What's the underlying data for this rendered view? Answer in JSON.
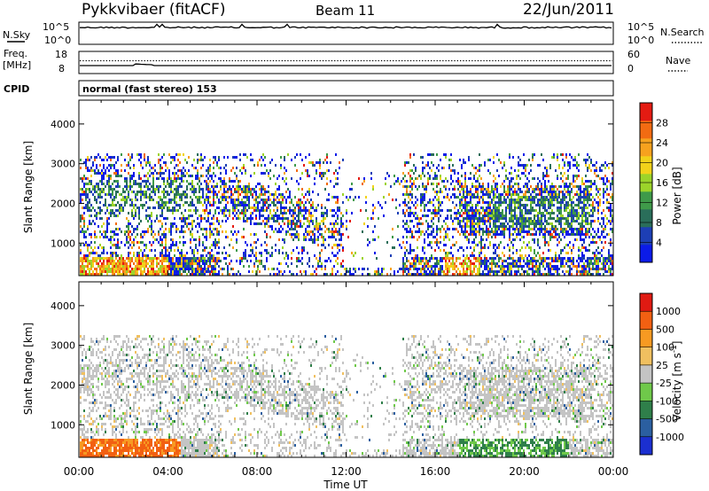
{
  "header": {
    "station": "Pykkvibaer (fitACF)",
    "beam": "Beam 11",
    "date": "22/Jun/2011"
  },
  "top_panels": {
    "nsky": {
      "label": "N.Sky",
      "ticks": [
        "10^5",
        "10^0"
      ]
    },
    "nsearch": {
      "label": "N.Search",
      "ticks": [
        "10^5",
        "10^0"
      ]
    },
    "freq": {
      "label_line1": "Freq.",
      "label_line2": "[MHz]",
      "ticks": [
        "18",
        "8"
      ]
    },
    "nave": {
      "label": "Nave",
      "ticks": [
        "60",
        "0"
      ]
    },
    "cpid": {
      "label": "CPID",
      "text": "normal (fast stereo) 153"
    }
  },
  "chart_data": [
    {
      "type": "heatmap",
      "title": "Power",
      "xlabel": "Time UT",
      "ylabel": "Slant Range [km]",
      "x_ticks": [
        "00:00",
        "04:00",
        "08:00",
        "12:00",
        "16:00",
        "20:00",
        "00:00"
      ],
      "x_range_hours": [
        0,
        24
      ],
      "y_ticks": [
        "4000",
        "3000",
        "2000",
        "1000"
      ],
      "ylim": [
        180,
        4600
      ],
      "colorbar": {
        "label": "Power [dB]",
        "ticks": [
          "28",
          "24",
          "20",
          "16",
          "12",
          "8",
          "4"
        ],
        "range": [
          0,
          32
        ],
        "colors": [
          "#0b1be8",
          "#1d3fb5",
          "#2a6e5a",
          "#3f9a4a",
          "#9cd42a",
          "#f2d21a",
          "#f7a21e",
          "#f26b12",
          "#e41b12"
        ]
      }
    },
    {
      "type": "heatmap",
      "title": "Velocity",
      "xlabel": "Time UT",
      "ylabel": "Slant Range [km]",
      "x_ticks": [
        "00:00",
        "04:00",
        "08:00",
        "12:00",
        "16:00",
        "20:00",
        "00:00"
      ],
      "x_range_hours": [
        0,
        24
      ],
      "y_ticks": [
        "4000",
        "3000",
        "2000",
        "1000"
      ],
      "ylim": [
        180,
        4600
      ],
      "colorbar": {
        "label": "Velocity [m s",
        "label_sup": "-1",
        "label_end": "]",
        "ticks": [
          "1000",
          "500",
          "100",
          "25",
          "-25",
          "-100",
          "-500",
          "-1000"
        ],
        "colors": [
          "#1b2fd0",
          "#2b5fa0",
          "#2f7f4a",
          "#6fc94a",
          "#c4c4c4",
          "#f0c060",
          "#f79a22",
          "#f26012",
          "#e01a12"
        ]
      }
    }
  ]
}
